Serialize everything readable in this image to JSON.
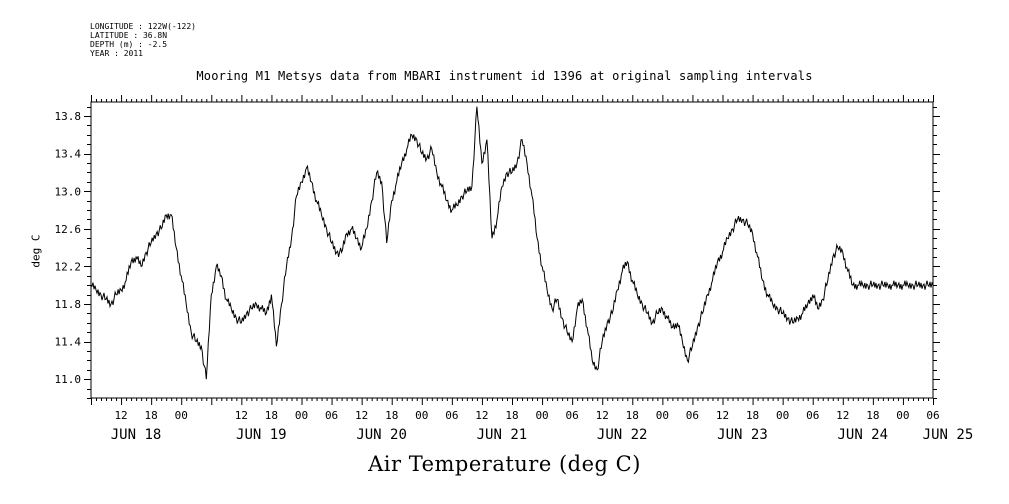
{
  "header": {
    "longitude": "LONGITUDE : 122W(-122)",
    "latitude": "LATITUDE : 36.8N",
    "depth": "DEPTH (m) : -2.5",
    "year": "YEAR : 2011"
  },
  "chart_data": {
    "type": "line",
    "title": "Mooring M1 Metsys data from MBARI instrument id 1396 at original sampling intervals",
    "xlabel": "Air Temperature (deg C)",
    "ylabel": "deg C",
    "ylim": [
      10.8,
      13.95
    ],
    "yticks": [
      "11.0",
      "11.4",
      "11.8",
      "12.2",
      "12.6",
      "13.0",
      "13.4",
      "13.8"
    ],
    "x_unit": "hours",
    "xlim": [
      0,
      168
    ],
    "x_start_label": "JUN 18 06",
    "x_tick_labels": [
      {
        "h": 6,
        "label": "12"
      },
      {
        "h": 12,
        "label": "18"
      },
      {
        "h": 18,
        "label": "00"
      },
      {
        "h": 30,
        "label": "12"
      },
      {
        "h": 36,
        "label": "18"
      },
      {
        "h": 42,
        "label": "00"
      },
      {
        "h": 48,
        "label": "06"
      },
      {
        "h": 54,
        "label": "12"
      },
      {
        "h": 60,
        "label": "18"
      },
      {
        "h": 66,
        "label": "00"
      },
      {
        "h": 72,
        "label": "06"
      },
      {
        "h": 78,
        "label": "12"
      },
      {
        "h": 84,
        "label": "18"
      },
      {
        "h": 90,
        "label": "00"
      },
      {
        "h": 96,
        "label": "06"
      },
      {
        "h": 102,
        "label": "12"
      },
      {
        "h": 108,
        "label": "18"
      },
      {
        "h": 114,
        "label": "00"
      },
      {
        "h": 120,
        "label": "06"
      },
      {
        "h": 126,
        "label": "12"
      },
      {
        "h": 132,
        "label": "18"
      },
      {
        "h": 138,
        "label": "00"
      },
      {
        "h": 144,
        "label": "06"
      },
      {
        "h": 150,
        "label": "12"
      },
      {
        "h": 156,
        "label": "18"
      },
      {
        "h": 162,
        "label": "00"
      },
      {
        "h": 168,
        "label": "06"
      }
    ],
    "day_labels": [
      {
        "h": 3,
        "label": "JUN 18"
      },
      {
        "h": 28,
        "label": "JUN 19"
      },
      {
        "h": 52,
        "label": "JUN 20"
      },
      {
        "h": 76,
        "label": "JUN 21"
      },
      {
        "h": 100,
        "label": "JUN 22"
      },
      {
        "h": 124,
        "label": "JUN 23"
      },
      {
        "h": 148,
        "label": "JUN 24"
      },
      {
        "h": 165,
        "label": "JUN 25"
      }
    ],
    "series": [
      {
        "x": [
          0,
          1,
          2,
          3,
          4,
          5,
          6,
          7,
          8,
          9,
          10,
          11,
          12,
          13,
          14,
          15,
          16,
          17,
          18,
          19,
          20,
          21,
          22,
          23,
          24,
          25,
          26,
          27,
          28,
          29,
          30,
          31,
          32,
          33,
          34,
          35,
          36,
          37,
          38,
          39,
          40,
          41,
          42,
          43,
          44,
          45,
          46,
          47,
          48,
          49,
          50,
          51,
          52,
          53,
          54,
          55,
          56,
          57,
          58,
          59,
          60,
          61,
          62,
          63,
          64,
          65,
          66,
          67,
          68,
          69,
          70,
          71,
          72,
          73,
          74,
          75,
          76,
          77,
          78,
          79,
          80,
          81,
          82,
          83,
          84,
          85,
          86,
          87,
          88,
          89,
          90,
          91,
          92,
          93,
          94,
          95,
          96,
          97,
          98,
          99,
          100,
          101,
          102,
          103,
          104,
          105,
          106,
          107,
          108,
          109,
          110,
          111,
          112,
          113,
          114,
          115,
          116,
          117,
          118,
          119,
          120,
          121,
          122,
          123,
          124,
          125,
          126,
          127,
          128,
          129,
          130,
          131,
          132,
          133,
          134,
          135,
          136,
          137,
          138,
          139,
          140,
          141,
          142,
          143,
          144,
          145,
          146,
          147,
          148,
          149,
          150,
          151,
          152,
          153,
          154,
          155,
          156,
          157,
          158,
          159,
          160,
          161,
          162,
          163,
          164,
          165,
          166,
          167,
          168
        ],
        "y": [
          12.0,
          11.95,
          11.9,
          11.85,
          11.8,
          11.9,
          11.95,
          12.05,
          12.25,
          12.3,
          12.2,
          12.35,
          12.45,
          12.55,
          12.6,
          12.75,
          12.75,
          12.4,
          12.1,
          11.8,
          11.5,
          11.4,
          11.35,
          11.0,
          11.9,
          12.2,
          12.1,
          11.85,
          11.75,
          11.65,
          11.6,
          11.7,
          11.75,
          11.8,
          11.75,
          11.7,
          11.9,
          11.35,
          11.8,
          12.2,
          12.5,
          12.95,
          13.1,
          13.25,
          13.1,
          12.9,
          12.75,
          12.6,
          12.45,
          12.35,
          12.35,
          12.55,
          12.6,
          12.5,
          12.4,
          12.6,
          12.9,
          13.2,
          13.1,
          12.45,
          12.9,
          13.1,
          13.3,
          13.45,
          13.6,
          13.55,
          13.4,
          13.35,
          13.45,
          13.2,
          13.05,
          12.9,
          12.8,
          12.85,
          12.95,
          13.0,
          13.05,
          13.9,
          13.3,
          13.55,
          12.5,
          12.7,
          13.05,
          13.2,
          13.2,
          13.3,
          13.55,
          13.3,
          12.95,
          12.5,
          12.2,
          11.95,
          11.75,
          11.85,
          11.65,
          11.5,
          11.4,
          11.75,
          11.85,
          11.55,
          11.2,
          11.1,
          11.4,
          11.6,
          11.7,
          11.95,
          12.15,
          12.25,
          12.05,
          11.9,
          11.8,
          11.7,
          11.6,
          11.7,
          11.75,
          11.65,
          11.55,
          11.6,
          11.4,
          11.2,
          11.35,
          11.55,
          11.7,
          11.9,
          12.05,
          12.25,
          12.35,
          12.5,
          12.6,
          12.7,
          12.7,
          12.65,
          12.55,
          12.3,
          12.05,
          11.9,
          11.8,
          11.75,
          11.7,
          11.65,
          11.6,
          11.65,
          11.7,
          11.8,
          11.9,
          11.75,
          11.85,
          12.05,
          12.3,
          12.4,
          12.35,
          12.15,
          12.0,
          12.0,
          12.0,
          12.0,
          12.0,
          12.0,
          12.0,
          12.0,
          12.0,
          12.0,
          12.0,
          12.0,
          12.0,
          12.0,
          12.0,
          12.0,
          12.0
        ]
      }
    ]
  }
}
